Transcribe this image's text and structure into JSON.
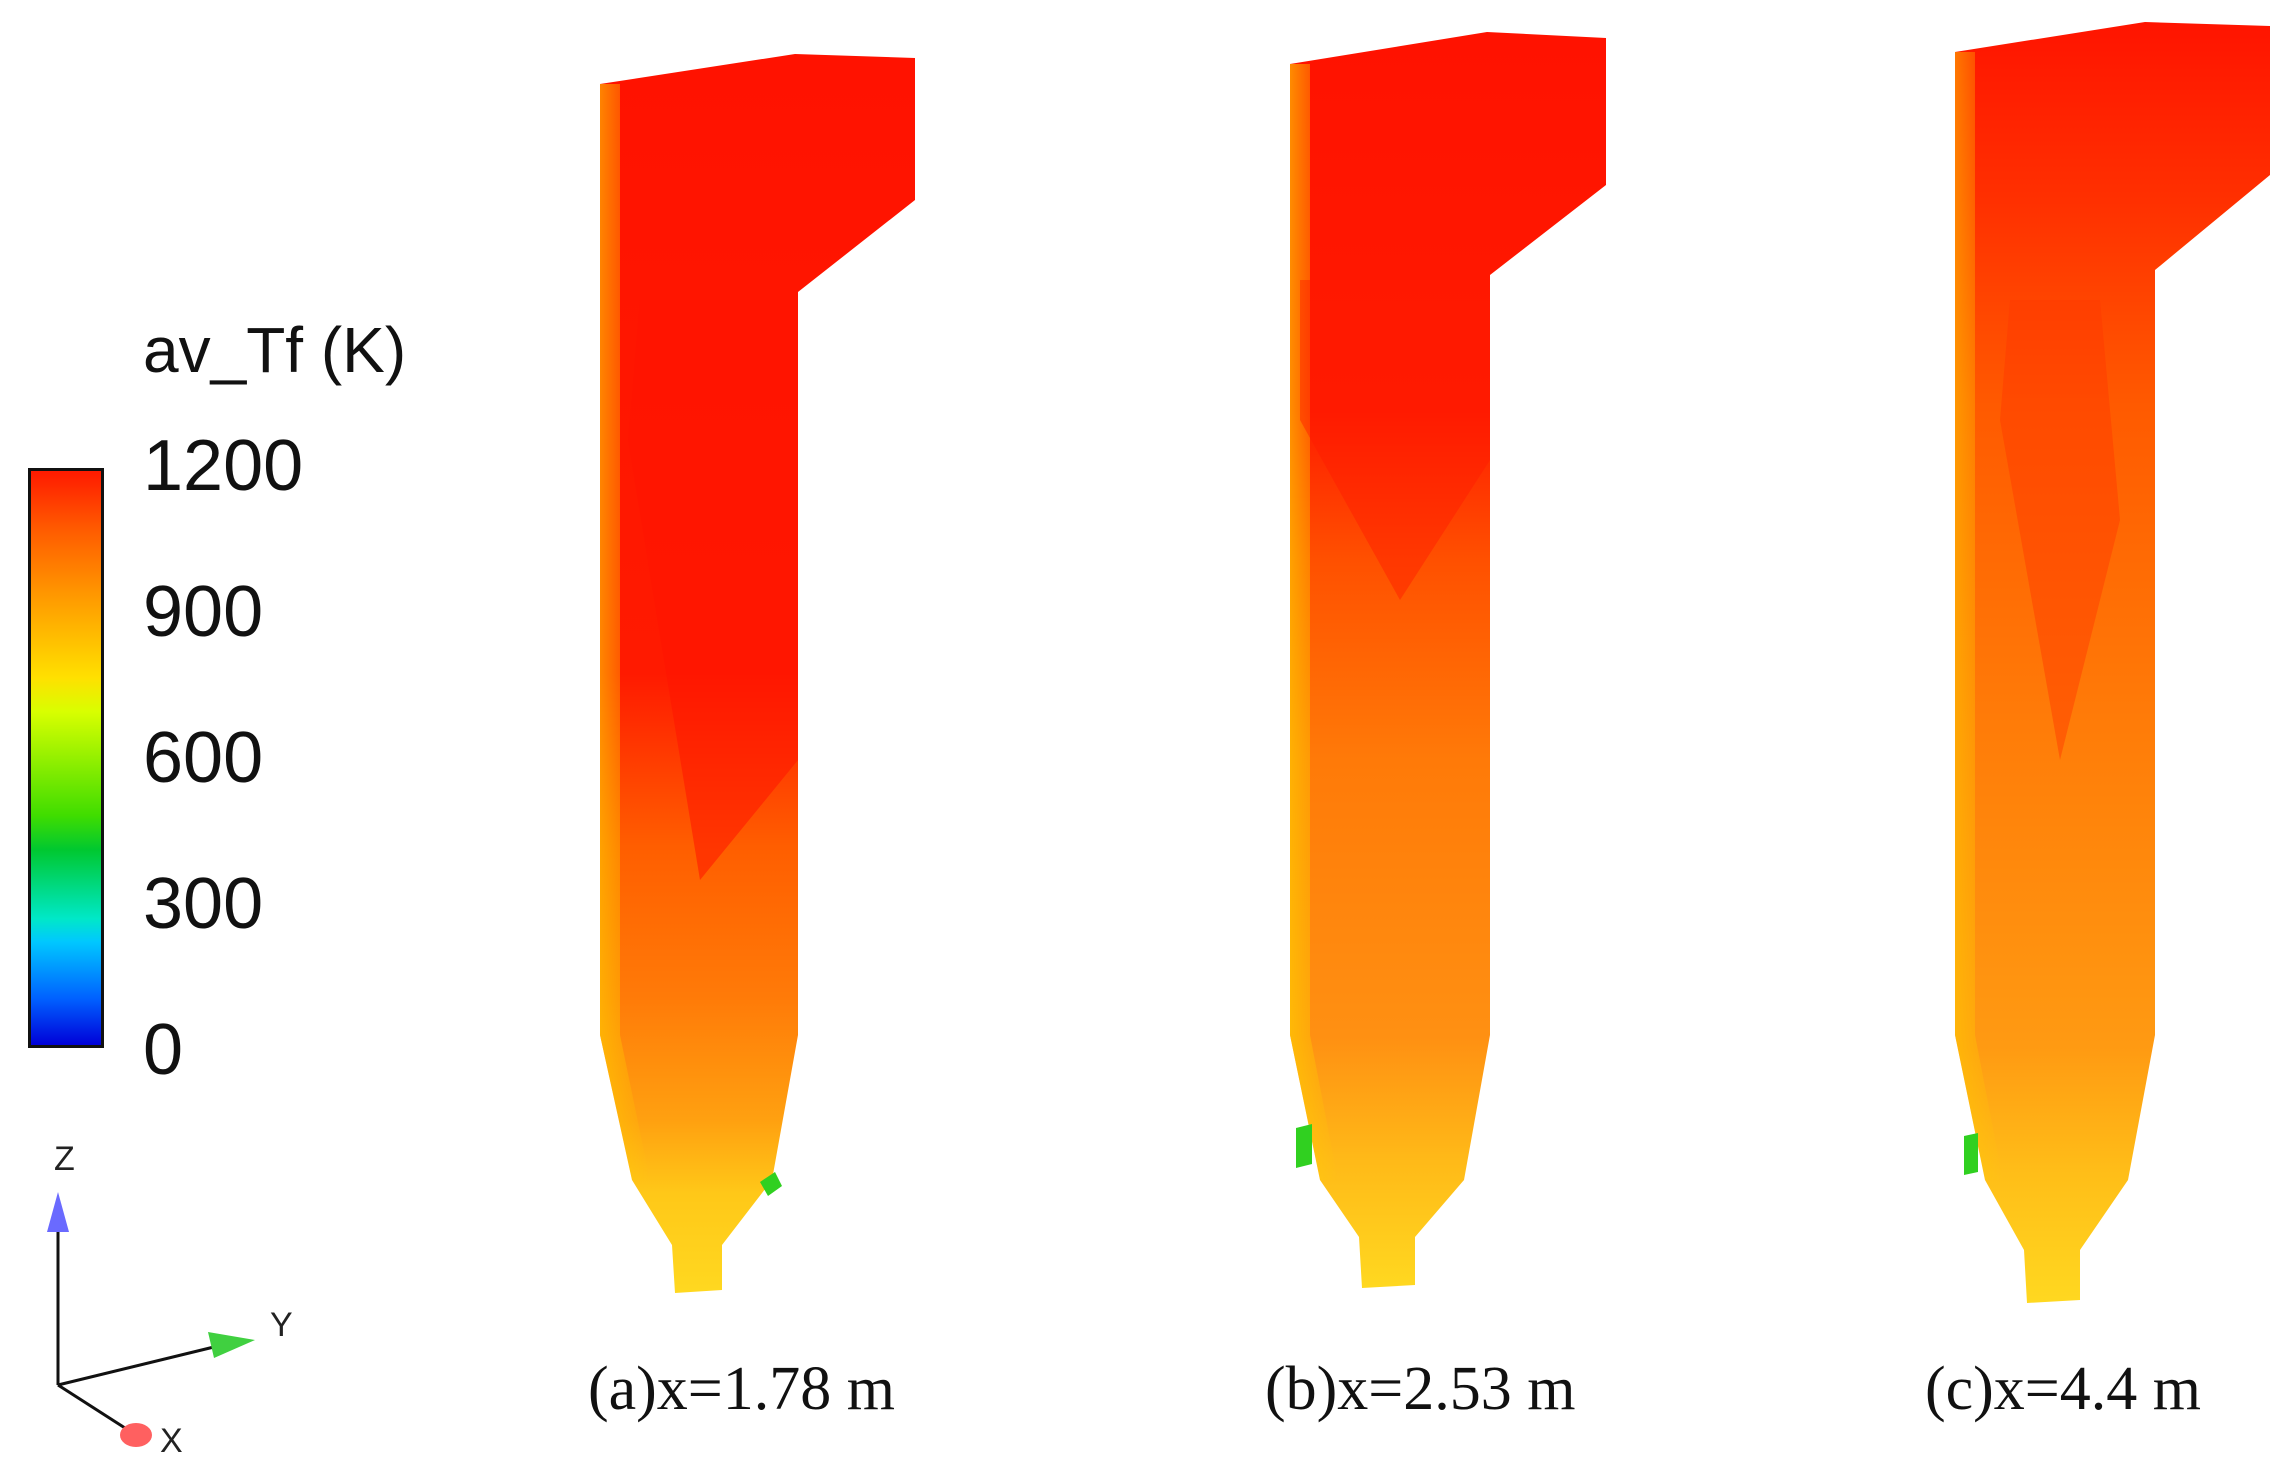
{
  "legend": {
    "title": "av_Tf (K)",
    "ticks": [
      "1200",
      "900",
      "600",
      "300",
      "0"
    ]
  },
  "axes_triad": {
    "z": "Z",
    "y": "Y",
    "x": "X"
  },
  "panels": [
    {
      "caption": "(a)x=1.78 m"
    },
    {
      "caption": "(b)x=2.53 m"
    },
    {
      "caption": "(c)x=4.4 m"
    }
  ],
  "colors": {
    "hot": "#ff1500",
    "warm": "#ff8a00",
    "yellow": "#ffd000",
    "green": "#30d020"
  }
}
